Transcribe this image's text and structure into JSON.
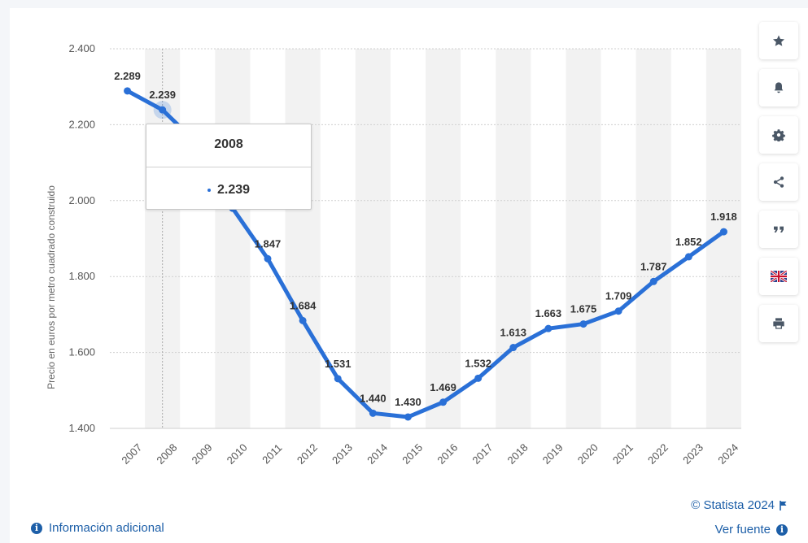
{
  "chart_data": {
    "type": "line",
    "title": "",
    "xlabel": "",
    "ylabel": "Precio en euros por metro cuadrado construido",
    "categories": [
      "2007",
      "2008",
      "2009",
      "2010",
      "2011",
      "2012",
      "2013",
      "2014",
      "2015",
      "2016",
      "2017",
      "2018",
      "2019",
      "2020",
      "2021",
      "2022",
      "2023",
      "2024"
    ],
    "values": [
      2289,
      2239,
      2150,
      1980,
      1847,
      1684,
      1531,
      1440,
      1430,
      1469,
      1532,
      1613,
      1663,
      1675,
      1709,
      1787,
      1852,
      1918
    ],
    "data_labels": [
      "2.289",
      "2.239",
      "",
      "",
      "1.847",
      "1.684",
      "1.531",
      "1.440",
      "1.430",
      "1.469",
      "1.532",
      "1.613",
      "1.663",
      "1.675",
      "1.709",
      "1.787",
      "1.852",
      "1.918"
    ],
    "ylim": [
      1400,
      2400
    ],
    "yticks": [
      1400,
      1600,
      1800,
      2000,
      2200,
      2400
    ],
    "ytick_labels": [
      "1.400",
      "1.600",
      "1.800",
      "2.000",
      "2.200",
      "2.400"
    ],
    "grid": true,
    "line_color": "#2a70d7",
    "highlight_index": 1
  },
  "tooltip": {
    "title": "2008",
    "value": "2.239"
  },
  "toolbar": {
    "buttons": [
      {
        "name": "star-icon"
      },
      {
        "name": "bell-icon"
      },
      {
        "name": "gear-icon"
      },
      {
        "name": "share-icon"
      },
      {
        "name": "quote-icon"
      },
      {
        "name": "flag-uk-icon"
      },
      {
        "name": "print-icon"
      }
    ]
  },
  "footer": {
    "info_link": "Información adicional",
    "copyright": "© Statista 2024",
    "source_link": "Ver fuente"
  },
  "colors": {
    "accent": "#2a70d7",
    "link": "#1d5fa8",
    "band": "#f2f2f2"
  }
}
